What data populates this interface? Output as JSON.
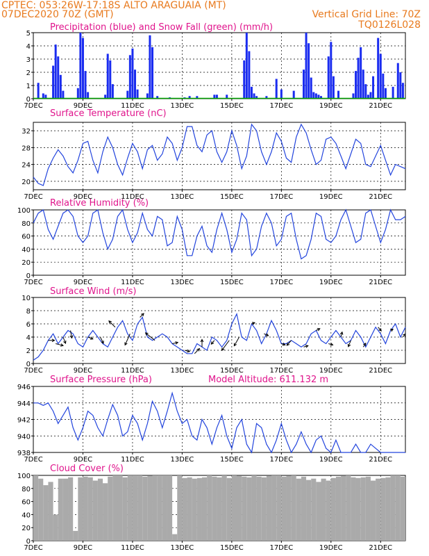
{
  "header": {
    "line1": "CPTEC:   053:26W-17:18S   ALTO ARAGUAIA (MT)",
    "line2_left": "07DEC2020 70Z (GMT)",
    "line2_right": "Vertical Grid Line: 70Z",
    "line3_right": "TQ0126L028"
  },
  "colors": {
    "header_text": "#e87a1e",
    "title_text": "#e0148c",
    "precip": "#1a2cf0",
    "snow": "#00a000",
    "line": "#2244dd",
    "arrow": "#000000",
    "cloud": "#aaaaaa"
  },
  "x_axis": {
    "ticks": [
      "7DEC",
      "9DEC",
      "11DEC",
      "13DEC",
      "15DEC",
      "17DEC",
      "19DEC",
      "21DEC"
    ],
    "days": [
      7,
      9,
      11,
      13,
      15,
      17,
      19,
      21
    ],
    "range_days": [
      7,
      22
    ]
  },
  "chart_data": [
    {
      "id": "precip",
      "type": "bar",
      "title": "Precipitation (blue) and Snow Fall (green) (mm/h)",
      "ylim": [
        0,
        5
      ],
      "yticks": [
        0,
        1,
        2,
        3,
        4,
        5
      ],
      "x_day": [
        7.2,
        7.4,
        7.5,
        7.8,
        7.9,
        8.0,
        8.1,
        8.2,
        8.8,
        8.9,
        9.0,
        9.1,
        9.2,
        9.9,
        10.0,
        10.1,
        10.2,
        10.8,
        10.9,
        11.0,
        11.1,
        11.2,
        11.6,
        11.7,
        11.8,
        12.0,
        12.5,
        13.1,
        13.3,
        13.6,
        14.3,
        14.4,
        14.8,
        15.5,
        15.6,
        15.7,
        15.8,
        15.9,
        16.0,
        16.4,
        16.8,
        17.0,
        17.5,
        17.9,
        18.0,
        18.1,
        18.2,
        18.3,
        18.4,
        18.5,
        18.6,
        18.9,
        19.0,
        19.1,
        19.3,
        19.9,
        20.0,
        20.1,
        20.2,
        20.3,
        20.4,
        20.5,
        20.6,
        20.7,
        20.9,
        21.0,
        21.1,
        21.2,
        21.5,
        21.7,
        21.8,
        21.9
      ],
      "values": [
        1.2,
        0.4,
        0.3,
        2.5,
        4.1,
        3.2,
        1.8,
        0.6,
        0.8,
        5.0,
        4.6,
        2.1,
        0.5,
        0.3,
        3.4,
        2.9,
        1.1,
        0.6,
        3.3,
        3.8,
        2.2,
        0.7,
        0.4,
        4.8,
        3.9,
        0.2,
        0.1,
        0.1,
        0.2,
        0.2,
        0.3,
        0.3,
        0.3,
        2.9,
        5.0,
        3.6,
        0.9,
        0.4,
        0.2,
        0.2,
        1.5,
        0.7,
        0.6,
        2.2,
        5.0,
        4.2,
        1.6,
        0.5,
        0.4,
        0.3,
        0.2,
        3.2,
        4.3,
        1.7,
        0.6,
        0.4,
        2.1,
        3.1,
        3.9,
        2.2,
        1.1,
        0.3,
        0.5,
        1.7,
        4.6,
        3.4,
        1.9,
        0.8,
        0.9,
        2.7,
        2.0,
        1.2
      ],
      "snow": 0
    },
    {
      "id": "temp",
      "type": "line",
      "title": "Surface Temperature (nC)",
      "ylim": [
        18,
        34
      ],
      "yticks": [
        20,
        24,
        28,
        32
      ],
      "x_day": [
        7.0,
        7.2,
        7.4,
        7.6,
        7.8,
        8.0,
        8.2,
        8.4,
        8.6,
        8.8,
        9.0,
        9.2,
        9.4,
        9.6,
        9.8,
        10.0,
        10.2,
        10.4,
        10.6,
        10.8,
        11.0,
        11.2,
        11.4,
        11.6,
        11.8,
        12.0,
        12.2,
        12.4,
        12.6,
        12.8,
        13.0,
        13.2,
        13.4,
        13.6,
        13.8,
        14.0,
        14.2,
        14.4,
        14.6,
        14.8,
        15.0,
        15.2,
        15.4,
        15.6,
        15.8,
        16.0,
        16.2,
        16.4,
        16.6,
        16.8,
        17.0,
        17.2,
        17.4,
        17.6,
        17.8,
        18.0,
        18.2,
        18.4,
        18.6,
        18.8,
        19.0,
        19.2,
        19.4,
        19.6,
        19.8,
        20.0,
        20.2,
        20.4,
        20.6,
        20.8,
        21.0,
        21.2,
        21.4,
        21.6,
        21.8,
        22.0
      ],
      "values": [
        21.0,
        19.5,
        19.0,
        23.0,
        25.5,
        27.5,
        26.0,
        23.5,
        22.0,
        25.0,
        29.0,
        29.5,
        25.0,
        22.0,
        27.0,
        30.5,
        28.0,
        24.0,
        21.5,
        25.5,
        29.0,
        27.0,
        23.0,
        27.5,
        28.5,
        25.0,
        26.5,
        30.5,
        29.0,
        25.0,
        28.0,
        33.0,
        33.0,
        28.5,
        27.0,
        31.0,
        32.0,
        27.0,
        24.5,
        27.0,
        32.0,
        28.5,
        23.0,
        26.0,
        33.5,
        32.0,
        27.0,
        24.0,
        27.0,
        31.5,
        29.5,
        25.5,
        24.5,
        30.5,
        33.5,
        31.5,
        27.5,
        24.0,
        25.0,
        30.0,
        30.5,
        29.0,
        26.0,
        23.0,
        26.5,
        30.0,
        29.0,
        24.0,
        23.5,
        26.0,
        28.5,
        25.0,
        21.5,
        24.0,
        23.5,
        23.0
      ]
    },
    {
      "id": "rh",
      "type": "line",
      "title": "Relative Humidity (%)",
      "ylim": [
        0,
        100
      ],
      "yticks": [
        0,
        20,
        40,
        60,
        80,
        100
      ],
      "x_day": [
        7.0,
        7.2,
        7.4,
        7.6,
        7.8,
        8.0,
        8.2,
        8.4,
        8.6,
        8.8,
        9.0,
        9.2,
        9.4,
        9.6,
        9.8,
        10.0,
        10.2,
        10.4,
        10.6,
        10.8,
        11.0,
        11.2,
        11.4,
        11.6,
        11.8,
        12.0,
        12.2,
        12.4,
        12.6,
        12.8,
        13.0,
        13.2,
        13.4,
        13.6,
        13.8,
        14.0,
        14.2,
        14.4,
        14.6,
        14.8,
        15.0,
        15.2,
        15.4,
        15.6,
        15.8,
        16.0,
        16.2,
        16.4,
        16.6,
        16.8,
        17.0,
        17.2,
        17.4,
        17.6,
        17.8,
        18.0,
        18.2,
        18.4,
        18.6,
        18.8,
        19.0,
        19.2,
        19.4,
        19.6,
        19.8,
        20.0,
        20.2,
        20.4,
        20.6,
        20.8,
        21.0,
        21.2,
        21.4,
        21.6,
        21.8,
        22.0
      ],
      "values": [
        80,
        95,
        100,
        70,
        55,
        75,
        95,
        100,
        90,
        60,
        50,
        60,
        95,
        100,
        65,
        40,
        55,
        90,
        100,
        70,
        50,
        65,
        95,
        70,
        60,
        90,
        85,
        45,
        50,
        90,
        70,
        30,
        30,
        60,
        75,
        45,
        35,
        70,
        95,
        70,
        35,
        55,
        95,
        85,
        30,
        40,
        75,
        95,
        80,
        45,
        55,
        90,
        95,
        55,
        25,
        30,
        55,
        95,
        90,
        55,
        50,
        60,
        85,
        100,
        75,
        50,
        55,
        95,
        100,
        75,
        50,
        70,
        100,
        85,
        85,
        90
      ]
    },
    {
      "id": "wind",
      "type": "line",
      "title": "Surface Wind (m/s)",
      "ylim": [
        0,
        10
      ],
      "yticks": [
        0,
        2,
        4,
        6,
        8,
        10
      ],
      "x_day": [
        7.0,
        7.2,
        7.4,
        7.6,
        7.8,
        8.0,
        8.2,
        8.4,
        8.6,
        8.8,
        9.0,
        9.2,
        9.4,
        9.6,
        9.8,
        10.0,
        10.2,
        10.4,
        10.6,
        10.8,
        11.0,
        11.2,
        11.4,
        11.6,
        11.8,
        12.0,
        12.2,
        12.4,
        12.6,
        12.8,
        13.0,
        13.2,
        13.4,
        13.6,
        13.8,
        14.0,
        14.2,
        14.4,
        14.6,
        14.8,
        15.0,
        15.2,
        15.4,
        15.6,
        15.8,
        16.0,
        16.2,
        16.4,
        16.6,
        16.8,
        17.0,
        17.2,
        17.4,
        17.6,
        17.8,
        18.0,
        18.2,
        18.4,
        18.6,
        18.8,
        19.0,
        19.2,
        19.4,
        19.6,
        19.8,
        20.0,
        20.2,
        20.4,
        20.6,
        20.8,
        21.0,
        21.2,
        21.4,
        21.6,
        21.8,
        22.0
      ],
      "values": [
        0.5,
        1.0,
        2.0,
        3.5,
        4.5,
        3.0,
        4.0,
        5.0,
        4.5,
        3.0,
        2.5,
        4.0,
        5.0,
        4.0,
        3.0,
        2.5,
        4.0,
        5.5,
        6.5,
        4.5,
        3.5,
        6.0,
        7.0,
        4.0,
        3.5,
        4.0,
        4.5,
        4.0,
        3.0,
        2.5,
        2.0,
        1.5,
        1.5,
        3.0,
        2.5,
        2.0,
        4.0,
        3.5,
        2.5,
        3.5,
        6.0,
        7.5,
        4.0,
        3.5,
        6.0,
        5.0,
        3.0,
        4.5,
        6.5,
        5.0,
        3.0,
        3.0,
        3.5,
        3.0,
        2.5,
        3.0,
        4.5,
        5.0,
        3.5,
        3.0,
        4.0,
        5.0,
        4.0,
        3.0,
        3.5,
        5.0,
        4.0,
        2.5,
        4.0,
        5.5,
        4.5,
        3.0,
        5.0,
        6.0,
        4.0,
        5.5
      ],
      "arrows": {
        "x_day": [
          7.6,
          7.9,
          8.2,
          8.5,
          9.2,
          9.7,
          10.3,
          10.9,
          11.3,
          11.9,
          12.6,
          13.1,
          13.5,
          13.8,
          14.3,
          14.9,
          15.3,
          15.8,
          16.3,
          17.0,
          17.4,
          17.9,
          18.4,
          18.9,
          19.4,
          19.8,
          20.3,
          20.9,
          21.4,
          21.9
        ],
        "u": [
          1.0,
          1.2,
          0.4,
          0.2,
          0.8,
          0.5,
          -1.0,
          -0.8,
          0.6,
          -1.5,
          0.9,
          0.8,
          0.8,
          0.0,
          -0.5,
          -1.2,
          -0.8,
          0.5,
          0.7,
          0.6,
          -0.7,
          0.7,
          0.6,
          0.7,
          0.2,
          -0.4,
          0.4,
          0.5,
          0.4,
          0.4
        ],
        "v": [
          0.0,
          -0.3,
          -1.0,
          -1.2,
          -0.3,
          -1.0,
          1.0,
          -1.8,
          0.6,
          1.2,
          0.2,
          -0.2,
          0.8,
          1.2,
          -0.6,
          -1.6,
          -1.4,
          0.2,
          -0.3,
          -0.2,
          -0.8,
          0.2,
          0.3,
          -0.2,
          0.8,
          -1.0,
          0.6,
          -0.6,
          0.2,
          0.5
        ]
      }
    },
    {
      "id": "pressure",
      "type": "line",
      "title": "Surface Pressure (hPa)",
      "annotation": "Model Altitude: 611.132 m",
      "ylim": [
        938,
        946
      ],
      "yticks": [
        938,
        940,
        942,
        944,
        946
      ],
      "x_day": [
        7.0,
        7.2,
        7.4,
        7.6,
        7.8,
        8.0,
        8.2,
        8.4,
        8.6,
        8.8,
        9.0,
        9.2,
        9.4,
        9.6,
        9.8,
        10.0,
        10.2,
        10.4,
        10.6,
        10.8,
        11.0,
        11.2,
        11.4,
        11.6,
        11.8,
        12.0,
        12.2,
        12.4,
        12.6,
        12.8,
        13.0,
        13.2,
        13.4,
        13.6,
        13.8,
        14.0,
        14.2,
        14.4,
        14.6,
        14.8,
        15.0,
        15.2,
        15.4,
        15.6,
        15.8,
        16.0,
        16.2,
        16.4,
        16.6,
        16.8,
        17.0,
        17.2,
        17.4,
        17.6,
        17.8,
        18.0,
        18.2,
        18.4,
        18.6,
        18.8,
        19.0,
        19.2,
        19.4,
        19.6,
        19.8,
        20.0,
        20.2,
        20.4,
        20.6,
        20.8,
        21.0,
        21.2,
        21.4,
        21.6,
        21.8,
        22.0
      ],
      "values": [
        944.0,
        944.0,
        943.7,
        944.0,
        943.0,
        941.5,
        942.5,
        943.5,
        941.0,
        939.5,
        941.0,
        943.0,
        942.5,
        941.0,
        940.0,
        942.0,
        943.8,
        942.5,
        940.0,
        940.5,
        942.5,
        941.5,
        939.5,
        941.5,
        944.2,
        943.0,
        941.0,
        943.0,
        945.2,
        943.0,
        941.5,
        942.0,
        940.0,
        939.5,
        942.0,
        941.0,
        939.0,
        941.0,
        942.5,
        940.0,
        938.5,
        941.0,
        942.0,
        939.0,
        938.0,
        941.5,
        941.0,
        939.0,
        938.0,
        939.5,
        941.5,
        939.5,
        938.0,
        939.0,
        940.5,
        939.0,
        938.0,
        939.5,
        940.0,
        938.5,
        938.0,
        939.5,
        938.0,
        937.5,
        938.0,
        939.0,
        938.0,
        937.5,
        939.0,
        938.5,
        937.0,
        937.5,
        937.0,
        938.0,
        937.5,
        938.0
      ]
    },
    {
      "id": "cloud",
      "type": "area",
      "title": "Cloud Cover (%)",
      "ylim": [
        0,
        100
      ],
      "yticks": [
        0,
        20,
        40,
        60,
        80,
        100
      ],
      "x_day": [
        7.0,
        7.2,
        7.4,
        7.6,
        7.8,
        8.0,
        8.2,
        8.4,
        8.6,
        8.8,
        9.0,
        9.2,
        9.4,
        9.6,
        9.8,
        10.0,
        10.2,
        10.4,
        10.6,
        10.8,
        11.0,
        11.2,
        11.4,
        11.6,
        11.8,
        12.0,
        12.2,
        12.4,
        12.6,
        12.8,
        13.0,
        13.2,
        13.4,
        13.6,
        13.8,
        14.0,
        14.2,
        14.4,
        14.6,
        14.8,
        15.0,
        15.2,
        15.4,
        15.6,
        15.8,
        16.0,
        16.2,
        16.4,
        16.6,
        16.8,
        17.0,
        17.2,
        17.4,
        17.6,
        17.8,
        18.0,
        18.2,
        18.4,
        18.6,
        18.8,
        19.0,
        19.2,
        19.4,
        19.6,
        19.8,
        20.0,
        20.2,
        20.4,
        20.6,
        20.8,
        21.0,
        21.2,
        21.4,
        21.6,
        21.8,
        22.0
      ],
      "values": [
        100,
        95,
        85,
        90,
        40,
        95,
        95,
        97,
        15,
        97,
        98,
        97,
        92,
        95,
        88,
        98,
        100,
        100,
        97,
        100,
        100,
        100,
        98,
        99,
        100,
        100,
        100,
        100,
        10,
        100,
        96,
        97,
        95,
        96,
        97,
        100,
        98,
        97,
        100,
        96,
        100,
        99,
        98,
        97,
        100,
        98,
        97,
        99,
        100,
        100,
        98,
        99,
        100,
        95,
        98,
        93,
        95,
        90,
        95,
        92,
        96,
        98,
        99,
        100,
        97,
        96,
        97,
        98,
        92,
        95,
        96,
        97,
        100,
        100,
        98,
        98
      ]
    }
  ]
}
